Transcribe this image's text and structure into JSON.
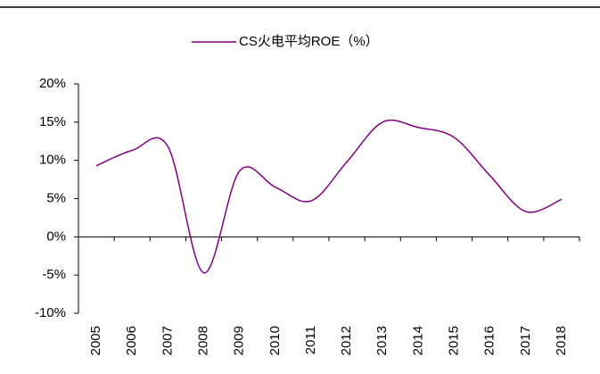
{
  "chart_data": {
    "type": "line",
    "categories": [
      "2005",
      "2006",
      "2007",
      "2008",
      "2009",
      "2010",
      "2011",
      "2012",
      "2013",
      "2014",
      "2015",
      "2016",
      "2017",
      "2018"
    ],
    "series": [
      {
        "name": "CS火电平均ROE（%）",
        "color": "#800080",
        "values": [
          9.3,
          11.3,
          11.8,
          -4.7,
          8.6,
          6.5,
          4.7,
          9.8,
          15.0,
          14.3,
          13.0,
          8.0,
          3.3,
          4.9
        ]
      }
    ],
    "ylim": [
      -10,
      20
    ],
    "yticks": [
      {
        "value": -10,
        "label": "-10%"
      },
      {
        "value": -5,
        "label": "-5%"
      },
      {
        "value": 0,
        "label": "0%"
      },
      {
        "value": 5,
        "label": "5%"
      },
      {
        "value": 10,
        "label": "10%"
      },
      {
        "value": 15,
        "label": "15%"
      },
      {
        "value": 20,
        "label": "20%"
      }
    ],
    "grid": false,
    "legend": "top"
  }
}
